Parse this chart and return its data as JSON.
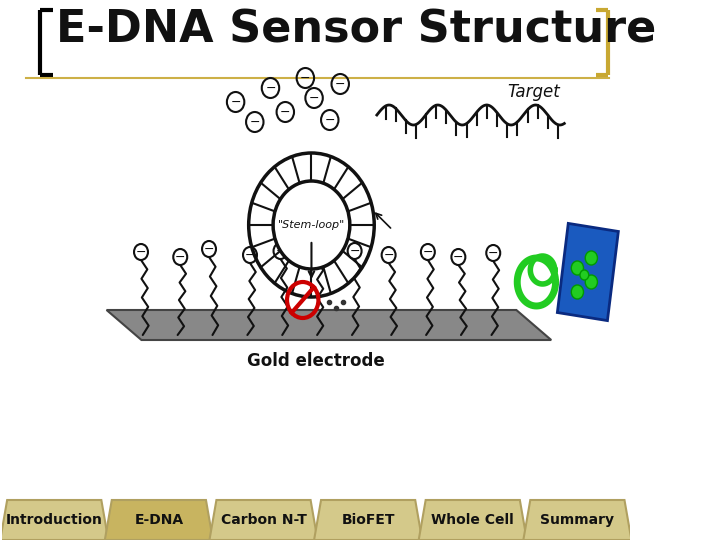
{
  "title": "E-DNA Sensor Structure",
  "title_fontsize": 32,
  "background_color": "#ffffff",
  "nav_tabs": [
    "Introduction",
    "E-DNA",
    "Carbon N-T",
    "BioFET",
    "Whole Cell",
    "Summary"
  ],
  "nav_tab_active": 1,
  "tab_bg_color": "#d4c98a",
  "tab_border_color": "#b0a060",
  "gold_electrode_label": "Gold electrode",
  "target_label": "Target",
  "stem_loop_label": "\"Stem-loop\"",
  "bracket_left_color": "#000000",
  "bracket_right_color": "#c8a832",
  "electrode_color": "#888888",
  "dna_color": "#111111",
  "minus_circle_color": "#111111",
  "stem_loop_ring_color": "#111111",
  "forbidden_red": "#cc0000",
  "device_blue": "#1a5abf",
  "device_green": "#22cc22",
  "header_line_color": "#c8a832"
}
